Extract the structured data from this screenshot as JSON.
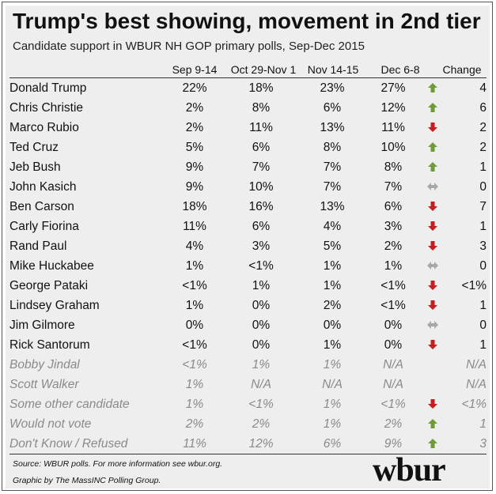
{
  "title": "Trump's best showing, movement in 2nd tier",
  "subtitle": "Candidate support in WBUR NH GOP primary polls, Sep-Dec 2015",
  "columns": [
    "Sep 9-14",
    "Oct 29-Nov 1",
    "Nov 14-15",
    "Dec 6-8",
    "Change"
  ],
  "colors": {
    "up": "#6f9a3a",
    "down": "#c41e1e",
    "flat": "#a8a8a8",
    "muted_text": "#8a8a8a"
  },
  "rows": [
    {
      "name": "Donald Trump",
      "v": [
        "22%",
        "18%",
        "23%",
        "27%"
      ],
      "dir": "up",
      "change": "4",
      "muted": false
    },
    {
      "name": "Chris Christie",
      "v": [
        "2%",
        "8%",
        "6%",
        "12%"
      ],
      "dir": "up",
      "change": "6",
      "muted": false
    },
    {
      "name": "Marco Rubio",
      "v": [
        "2%",
        "11%",
        "13%",
        "11%"
      ],
      "dir": "down",
      "change": "2",
      "muted": false
    },
    {
      "name": "Ted Cruz",
      "v": [
        "5%",
        "6%",
        "8%",
        "10%"
      ],
      "dir": "up",
      "change": "2",
      "muted": false
    },
    {
      "name": "Jeb Bush",
      "v": [
        "9%",
        "7%",
        "7%",
        "8%"
      ],
      "dir": "up",
      "change": "1",
      "muted": false
    },
    {
      "name": "John Kasich",
      "v": [
        "9%",
        "10%",
        "7%",
        "7%"
      ],
      "dir": "flat",
      "change": "0",
      "muted": false
    },
    {
      "name": "Ben Carson",
      "v": [
        "18%",
        "16%",
        "13%",
        "6%"
      ],
      "dir": "down",
      "change": "7",
      "muted": false
    },
    {
      "name": "Carly Fiorina",
      "v": [
        "11%",
        "6%",
        "4%",
        "3%"
      ],
      "dir": "down",
      "change": "1",
      "muted": false
    },
    {
      "name": "Rand Paul",
      "v": [
        "4%",
        "3%",
        "5%",
        "2%"
      ],
      "dir": "down",
      "change": "3",
      "muted": false
    },
    {
      "name": "Mike Huckabee",
      "v": [
        "1%",
        "<1%",
        "1%",
        "1%"
      ],
      "dir": "flat",
      "change": "0",
      "muted": false
    },
    {
      "name": "George Pataki",
      "v": [
        "<1%",
        "1%",
        "1%",
        "<1%"
      ],
      "dir": "down",
      "change": "<1%",
      "muted": false
    },
    {
      "name": "Lindsey Graham",
      "v": [
        "1%",
        "0%",
        "2%",
        "<1%"
      ],
      "dir": "down",
      "change": "1",
      "muted": false
    },
    {
      "name": "Jim Gilmore",
      "v": [
        "0%",
        "0%",
        "0%",
        "0%"
      ],
      "dir": "flat",
      "change": "0",
      "muted": false
    },
    {
      "name": "Rick Santorum",
      "v": [
        "<1%",
        "0%",
        "1%",
        "0%"
      ],
      "dir": "down",
      "change": "1",
      "muted": false
    },
    {
      "name": "Bobby Jindal",
      "v": [
        "<1%",
        "1%",
        "1%",
        "N/A"
      ],
      "dir": "none",
      "change": "N/A",
      "muted": true
    },
    {
      "name": "Scott Walker",
      "v": [
        "1%",
        "N/A",
        "N/A",
        "N/A"
      ],
      "dir": "none",
      "change": "N/A",
      "muted": true
    },
    {
      "name": "Some other candidate",
      "v": [
        "1%",
        "<1%",
        "1%",
        "<1%"
      ],
      "dir": "down",
      "change": "<1%",
      "muted": true
    },
    {
      "name": "Would not vote",
      "v": [
        "2%",
        "2%",
        "1%",
        "2%"
      ],
      "dir": "up",
      "change": "1",
      "muted": true
    },
    {
      "name": "Don't Know / Refused",
      "v": [
        "11%",
        "12%",
        "6%",
        "9%"
      ],
      "dir": "up",
      "change": "3",
      "muted": true
    }
  ],
  "footer": {
    "source": "Source: WBUR polls. For more information see wbur.org.",
    "credit": "Graphic by The MassINC Polling Group."
  },
  "logo_text": "wbur"
}
